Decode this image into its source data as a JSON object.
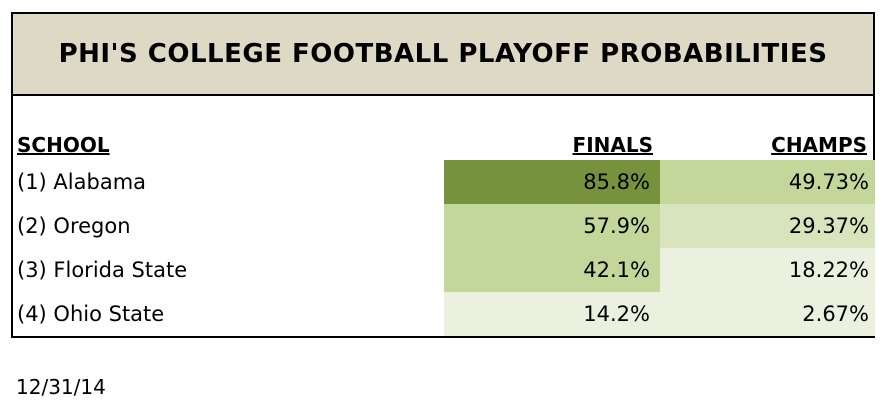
{
  "chart_data": {
    "type": "table",
    "title": "PHI'S COLLEGE FOOTBALL PLAYOFF PROBABILITIES",
    "columns": [
      "SCHOOL",
      "FINALS",
      "CHAMPS"
    ],
    "rows": [
      {
        "school": "(1) Alabama",
        "finals": "85.8%",
        "champs": "49.73%",
        "finals_value": 85.8,
        "champs_value": 49.73,
        "finals_color": "#76923c",
        "champs_color": "#c4d79b"
      },
      {
        "school": "(2) Oregon",
        "finals": "57.9%",
        "champs": "29.37%",
        "finals_value": 57.9,
        "champs_value": 29.37,
        "finals_color": "#c4d79b",
        "champs_color": "#d8e4bc"
      },
      {
        "school": "(3) Florida State",
        "finals": "42.1%",
        "champs": "18.22%",
        "finals_value": 42.1,
        "champs_value": 18.22,
        "finals_color": "#c4d79b",
        "champs_color": "#ebf1de"
      },
      {
        "school": "(4) Ohio State",
        "finals": "14.2%",
        "champs": "2.67%",
        "finals_value": 14.2,
        "champs_value": 2.67,
        "finals_color": "#ebf1de",
        "champs_color": "#ebf1de"
      }
    ]
  },
  "date": "12/31/14"
}
